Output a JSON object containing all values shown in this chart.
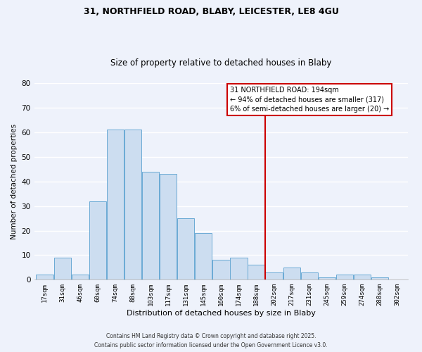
{
  "title1": "31, NORTHFIELD ROAD, BLABY, LEICESTER, LE8 4GU",
  "title2": "Size of property relative to detached houses in Blaby",
  "xlabel": "Distribution of detached houses by size in Blaby",
  "ylabel": "Number of detached properties",
  "bin_labels": [
    "17sqm",
    "31sqm",
    "46sqm",
    "60sqm",
    "74sqm",
    "88sqm",
    "103sqm",
    "117sqm",
    "131sqm",
    "145sqm",
    "160sqm",
    "174sqm",
    "188sqm",
    "202sqm",
    "217sqm",
    "231sqm",
    "245sqm",
    "259sqm",
    "274sqm",
    "288sqm",
    "302sqm"
  ],
  "bar_heights": [
    2,
    9,
    2,
    32,
    61,
    61,
    44,
    43,
    25,
    19,
    8,
    9,
    6,
    3,
    5,
    3,
    1,
    2,
    2,
    1,
    0
  ],
  "bar_color": "#ccddf0",
  "bar_edge_color": "#6aaad4",
  "ylim": [
    0,
    80
  ],
  "yticks": [
    0,
    10,
    20,
    30,
    40,
    50,
    60,
    70,
    80
  ],
  "annotation_text": "31 NORTHFIELD ROAD: 194sqm\n← 94% of detached houses are smaller (317)\n6% of semi-detached houses are larger (20) →",
  "annotation_box_color": "#ffffff",
  "annotation_box_edgecolor": "#cc0000",
  "vline_color": "#cc0000",
  "footer1": "Contains HM Land Registry data © Crown copyright and database right 2025.",
  "footer2": "Contains public sector information licensed under the Open Government Licence v3.0.",
  "bg_color": "#eef2fb",
  "grid_color": "#ffffff",
  "title_fontsize": 9,
  "subtitle_fontsize": 8.5
}
